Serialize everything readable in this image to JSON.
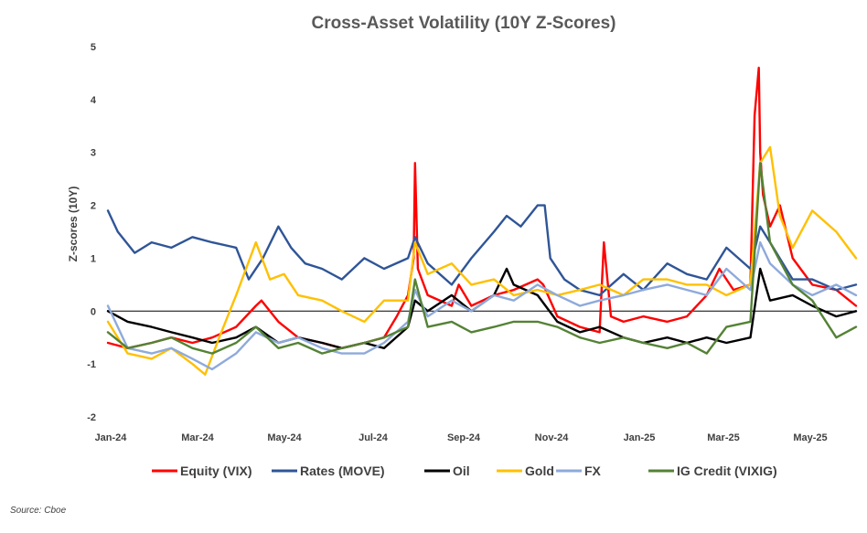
{
  "chart_data": {
    "type": "line",
    "title": "Cross-Asset Volatility (10Y Z-Scores)",
    "ylabel": "Z-scores (10Y)",
    "xlabel": "",
    "ylim": [
      -2,
      5
    ],
    "yticks": [
      "5",
      "4",
      "3",
      "2",
      "1",
      "0",
      "-1",
      "-2"
    ],
    "xticks": [
      "Jan-24",
      "Mar-24",
      "May-24",
      "Jul-24",
      "Sep-24",
      "Nov-24",
      "Jan-25",
      "Mar-25",
      "May-25"
    ],
    "x_range": [
      "2024-01-01",
      "2025-06-15"
    ],
    "grid": false,
    "legend_position": "bottom",
    "series": [
      {
        "name": "Equity (VIX)",
        "color": "#ff0000",
        "x": [
          "2024-01-01",
          "2024-01-15",
          "2024-02-01",
          "2024-02-15",
          "2024-03-01",
          "2024-03-15",
          "2024-04-01",
          "2024-04-15",
          "2024-04-19",
          "2024-05-01",
          "2024-05-15",
          "2024-06-01",
          "2024-06-15",
          "2024-07-01",
          "2024-07-15",
          "2024-07-24",
          "2024-08-01",
          "2024-08-05",
          "2024-08-06",
          "2024-08-08",
          "2024-08-15",
          "2024-09-01",
          "2024-09-06",
          "2024-09-15",
          "2024-10-01",
          "2024-10-15",
          "2024-11-01",
          "2024-11-05",
          "2024-11-15",
          "2024-12-01",
          "2024-12-15",
          "2024-12-18",
          "2024-12-23",
          "2025-01-01",
          "2025-01-15",
          "2025-02-01",
          "2025-02-15",
          "2025-03-01",
          "2025-03-10",
          "2025-03-20",
          "2025-04-01",
          "2025-04-04",
          "2025-04-07",
          "2025-04-08",
          "2025-04-10",
          "2025-04-15",
          "2025-04-22",
          "2025-05-01",
          "2025-05-15",
          "2025-06-01",
          "2025-06-15"
        ],
        "y": [
          -0.6,
          -0.7,
          -0.6,
          -0.5,
          -0.6,
          -0.5,
          -0.3,
          0.1,
          0.2,
          -0.2,
          -0.5,
          -0.6,
          -0.7,
          -0.6,
          -0.5,
          -0.1,
          0.3,
          1.0,
          2.8,
          0.8,
          0.3,
          0.1,
          0.5,
          0.1,
          0.3,
          0.4,
          0.6,
          0.5,
          -0.1,
          -0.3,
          -0.4,
          1.3,
          -0.1,
          -0.2,
          -0.1,
          -0.2,
          -0.1,
          0.3,
          0.8,
          0.4,
          0.5,
          3.7,
          4.6,
          3.0,
          2.2,
          1.6,
          2.0,
          1.0,
          0.5,
          0.4,
          0.1
        ]
      },
      {
        "name": "Rates (MOVE)",
        "color": "#2f5597",
        "x": [
          "2024-01-01",
          "2024-01-08",
          "2024-01-20",
          "2024-02-01",
          "2024-02-15",
          "2024-03-01",
          "2024-03-15",
          "2024-04-01",
          "2024-04-10",
          "2024-04-20",
          "2024-05-01",
          "2024-05-10",
          "2024-05-20",
          "2024-06-01",
          "2024-06-15",
          "2024-07-01",
          "2024-07-15",
          "2024-08-01",
          "2024-08-06",
          "2024-08-15",
          "2024-09-01",
          "2024-09-15",
          "2024-10-01",
          "2024-10-10",
          "2024-10-20",
          "2024-11-01",
          "2024-11-06",
          "2024-11-10",
          "2024-11-20",
          "2024-12-01",
          "2024-12-15",
          "2025-01-01",
          "2025-01-15",
          "2025-02-01",
          "2025-02-15",
          "2025-03-01",
          "2025-03-15",
          "2025-04-01",
          "2025-04-08",
          "2025-04-15",
          "2025-05-01",
          "2025-05-15",
          "2025-06-01",
          "2025-06-15"
        ],
        "y": [
          1.9,
          1.5,
          1.1,
          1.3,
          1.2,
          1.4,
          1.3,
          1.2,
          0.6,
          1.0,
          1.6,
          1.2,
          0.9,
          0.8,
          0.6,
          1.0,
          0.8,
          1.0,
          1.4,
          0.9,
          0.5,
          1.0,
          1.5,
          1.8,
          1.6,
          2.0,
          2.0,
          1.0,
          0.6,
          0.4,
          0.3,
          0.7,
          0.4,
          0.9,
          0.7,
          0.6,
          1.2,
          0.8,
          1.6,
          1.3,
          0.6,
          0.6,
          0.4,
          0.5
        ]
      },
      {
        "name": "Oil",
        "color": "#000000",
        "x": [
          "2024-01-01",
          "2024-01-15",
          "2024-02-01",
          "2024-02-15",
          "2024-03-01",
          "2024-03-15",
          "2024-04-01",
          "2024-04-15",
          "2024-05-01",
          "2024-05-15",
          "2024-06-01",
          "2024-06-15",
          "2024-07-01",
          "2024-07-15",
          "2024-08-01",
          "2024-08-06",
          "2024-08-15",
          "2024-09-01",
          "2024-09-15",
          "2024-10-01",
          "2024-10-10",
          "2024-10-15",
          "2024-11-01",
          "2024-11-15",
          "2024-12-01",
          "2024-12-15",
          "2025-01-01",
          "2025-01-15",
          "2025-02-01",
          "2025-02-15",
          "2025-03-01",
          "2025-03-15",
          "2025-04-01",
          "2025-04-08",
          "2025-04-15",
          "2025-05-01",
          "2025-05-15",
          "2025-06-01",
          "2025-06-15"
        ],
        "y": [
          0.0,
          -0.2,
          -0.3,
          -0.4,
          -0.5,
          -0.6,
          -0.5,
          -0.3,
          -0.6,
          -0.5,
          -0.6,
          -0.7,
          -0.6,
          -0.7,
          -0.3,
          0.2,
          0.0,
          0.3,
          0.0,
          0.3,
          0.8,
          0.5,
          0.3,
          -0.2,
          -0.4,
          -0.3,
          -0.5,
          -0.6,
          -0.5,
          -0.6,
          -0.5,
          -0.6,
          -0.5,
          0.8,
          0.2,
          0.3,
          0.1,
          -0.1,
          0.0
        ]
      },
      {
        "name": "Gold",
        "color": "#ffc000",
        "x": [
          "2024-01-01",
          "2024-01-15",
          "2024-02-01",
          "2024-02-15",
          "2024-03-01",
          "2024-03-10",
          "2024-03-20",
          "2024-04-01",
          "2024-04-15",
          "2024-04-25",
          "2024-05-05",
          "2024-05-15",
          "2024-06-01",
          "2024-06-15",
          "2024-07-01",
          "2024-07-15",
          "2024-08-01",
          "2024-08-06",
          "2024-08-15",
          "2024-09-01",
          "2024-09-15",
          "2024-10-01",
          "2024-10-15",
          "2024-11-01",
          "2024-11-15",
          "2024-12-01",
          "2024-12-15",
          "2025-01-01",
          "2025-01-15",
          "2025-02-01",
          "2025-02-15",
          "2025-03-01",
          "2025-03-15",
          "2025-04-01",
          "2025-04-08",
          "2025-04-15",
          "2025-04-22",
          "2025-05-01",
          "2025-05-15",
          "2025-06-01",
          "2025-06-15"
        ],
        "y": [
          -0.2,
          -0.8,
          -0.9,
          -0.7,
          -1.0,
          -1.2,
          -0.5,
          0.3,
          1.3,
          0.6,
          0.7,
          0.3,
          0.2,
          0.0,
          -0.2,
          0.2,
          0.2,
          1.3,
          0.7,
          0.9,
          0.5,
          0.6,
          0.3,
          0.4,
          0.3,
          0.4,
          0.5,
          0.3,
          0.6,
          0.6,
          0.5,
          0.5,
          0.3,
          0.5,
          2.8,
          3.1,
          1.8,
          1.2,
          1.9,
          1.5,
          1.0
        ]
      },
      {
        "name": "FX",
        "color": "#8eaadb",
        "x": [
          "2024-01-01",
          "2024-01-15",
          "2024-02-01",
          "2024-02-15",
          "2024-03-01",
          "2024-03-15",
          "2024-04-01",
          "2024-04-15",
          "2024-05-01",
          "2024-05-15",
          "2024-06-01",
          "2024-06-15",
          "2024-07-01",
          "2024-07-15",
          "2024-08-01",
          "2024-08-06",
          "2024-08-15",
          "2024-09-01",
          "2024-09-15",
          "2024-10-01",
          "2024-10-15",
          "2024-11-01",
          "2024-11-15",
          "2024-12-01",
          "2024-12-15",
          "2025-01-01",
          "2025-01-15",
          "2025-02-01",
          "2025-02-15",
          "2025-03-01",
          "2025-03-15",
          "2025-04-01",
          "2025-04-08",
          "2025-04-15",
          "2025-05-01",
          "2025-05-15",
          "2025-06-01",
          "2025-06-15"
        ],
        "y": [
          0.1,
          -0.7,
          -0.8,
          -0.7,
          -0.9,
          -1.1,
          -0.8,
          -0.4,
          -0.6,
          -0.5,
          -0.7,
          -0.8,
          -0.8,
          -0.6,
          -0.2,
          0.4,
          -0.1,
          0.2,
          0.0,
          0.3,
          0.2,
          0.5,
          0.3,
          0.1,
          0.2,
          0.3,
          0.4,
          0.5,
          0.4,
          0.3,
          0.8,
          0.4,
          1.3,
          0.9,
          0.5,
          0.3,
          0.5,
          0.3
        ]
      },
      {
        "name": "IG Credit (VIXIG)",
        "color": "#548235",
        "x": [
          "2024-01-01",
          "2024-01-15",
          "2024-02-01",
          "2024-02-15",
          "2024-03-01",
          "2024-03-15",
          "2024-04-01",
          "2024-04-15",
          "2024-05-01",
          "2024-05-15",
          "2024-06-01",
          "2024-06-15",
          "2024-07-01",
          "2024-07-15",
          "2024-08-01",
          "2024-08-06",
          "2024-08-15",
          "2024-09-01",
          "2024-09-15",
          "2024-10-01",
          "2024-10-15",
          "2024-11-01",
          "2024-11-15",
          "2024-12-01",
          "2024-12-15",
          "2025-01-01",
          "2025-01-15",
          "2025-02-01",
          "2025-02-15",
          "2025-03-01",
          "2025-03-15",
          "2025-04-01",
          "2025-04-08",
          "2025-04-15",
          "2025-05-01",
          "2025-05-15",
          "2025-06-01",
          "2025-06-15"
        ],
        "y": [
          -0.4,
          -0.7,
          -0.6,
          -0.5,
          -0.7,
          -0.8,
          -0.6,
          -0.3,
          -0.7,
          -0.6,
          -0.8,
          -0.7,
          -0.6,
          -0.5,
          -0.3,
          0.6,
          -0.3,
          -0.2,
          -0.4,
          -0.3,
          -0.2,
          -0.2,
          -0.3,
          -0.5,
          -0.6,
          -0.5,
          -0.6,
          -0.7,
          -0.6,
          -0.8,
          -0.3,
          -0.2,
          2.8,
          1.3,
          0.5,
          0.2,
          -0.5,
          -0.3
        ]
      }
    ]
  },
  "footer": {
    "source": "Source: Cboe"
  }
}
